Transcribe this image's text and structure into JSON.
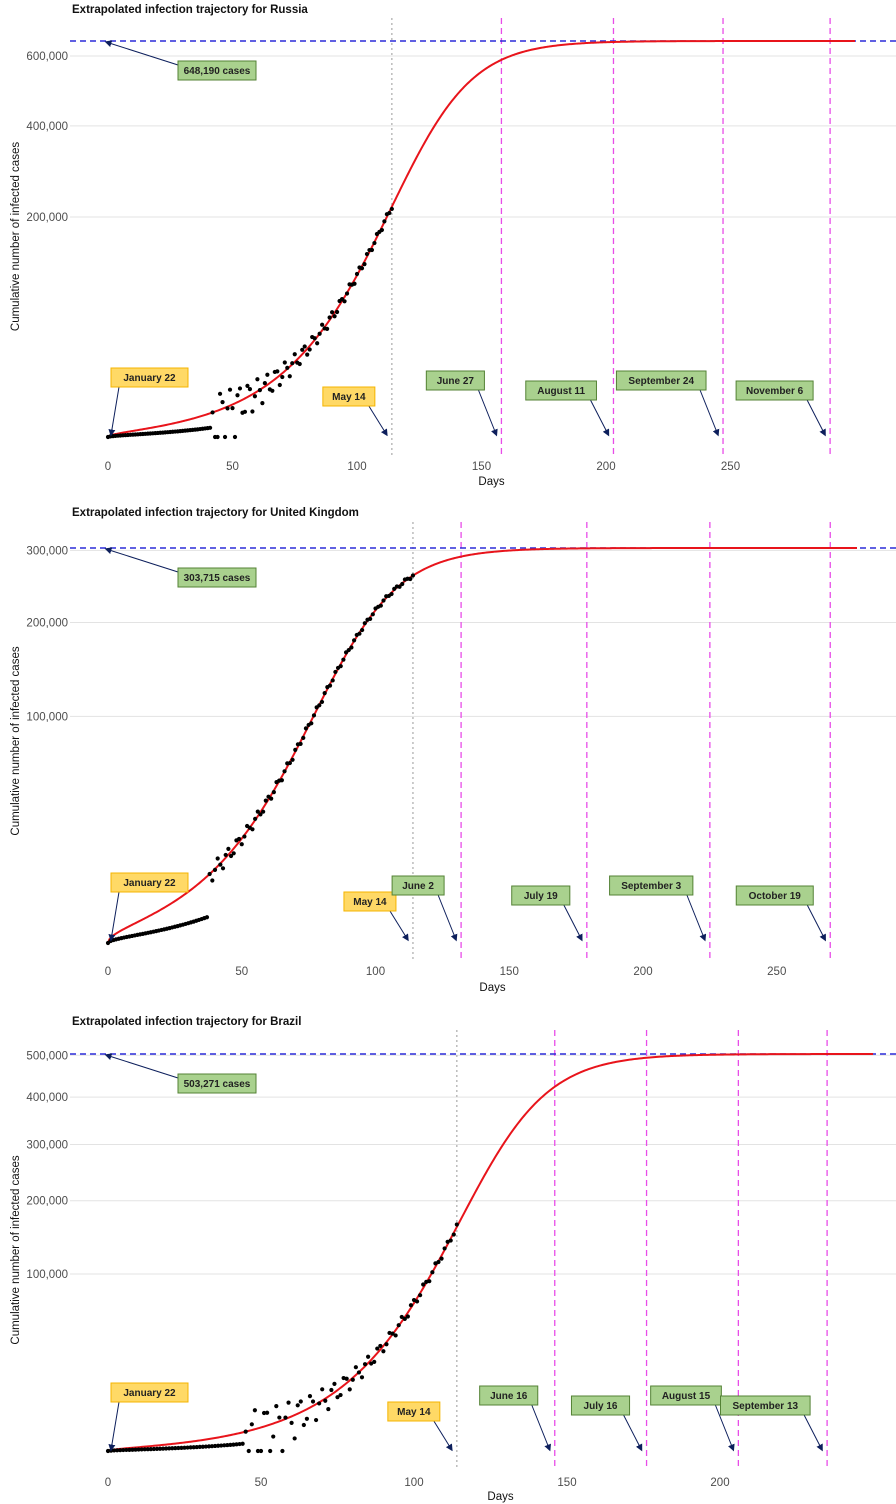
{
  "chart_data": [
    {
      "type": "line",
      "title": "Extrapolated infection trajectory for  Russia",
      "xlabel": "Days",
      "ylabel": "Cumulative number of infected cases",
      "xlim": [
        0,
        300
      ],
      "x_ticks": [
        0,
        50,
        100,
        150,
        200,
        250
      ],
      "y_ticks": [
        200000,
        400000,
        600000
      ],
      "y_tick_labels": [
        "200,000",
        "400,000",
        "600,000"
      ],
      "y_scale": "sqrt",
      "ylim": [
        0,
        648190
      ],
      "grid": true,
      "final_size": 648190,
      "final_size_label": "648,190 cases",
      "model": {
        "x0": 124,
        "k": 0.067,
        "x_end": 300
      },
      "observed_until_day": 114,
      "observed_onset_day": 42,
      "annotations": [
        {
          "label": "January 22",
          "day": 0,
          "style": "yellow",
          "line": "none"
        },
        {
          "label": "May 14",
          "day": 114,
          "style": "yellow",
          "line": "dotted"
        },
        {
          "label": "June 27",
          "day": 158,
          "style": "green",
          "line": "dashed"
        },
        {
          "label": "August 11",
          "day": 203,
          "style": "green",
          "line": "dashed"
        },
        {
          "label": "September 24",
          "day": 247,
          "style": "green",
          "line": "dashed"
        },
        {
          "label": "November 6",
          "day": 290,
          "style": "green",
          "line": "dashed"
        }
      ]
    },
    {
      "type": "line",
      "title": "Extrapolated infection trajectory for  United Kingdom",
      "xlabel": "Days",
      "ylabel": "Cumulative number of infected cases",
      "xlim": [
        0,
        280
      ],
      "x_ticks": [
        0,
        50,
        100,
        150,
        200,
        250
      ],
      "y_ticks": [
        100000,
        200000,
        300000
      ],
      "y_tick_labels": [
        "100,000",
        "200,000",
        "300,000"
      ],
      "y_scale": "sqrt",
      "ylim": [
        0,
        303715
      ],
      "grid": true,
      "final_size": 303715,
      "final_size_label": "303,715 cases",
      "model": {
        "x0": 87,
        "k": 0.069,
        "x_end": 280
      },
      "observed_until_day": 114,
      "observed_onset_day": 38,
      "annotations": [
        {
          "label": "January 22",
          "day": 0,
          "style": "yellow",
          "line": "none"
        },
        {
          "label": "May 14",
          "day": 114,
          "style": "yellow",
          "line": "dotted"
        },
        {
          "label": "June 2",
          "day": 132,
          "style": "green",
          "line": "dashed"
        },
        {
          "label": "July 19",
          "day": 179,
          "style": "green",
          "line": "dashed"
        },
        {
          "label": "September 3",
          "day": 225,
          "style": "green",
          "line": "dashed"
        },
        {
          "label": "October 19",
          "day": 270,
          "style": "green",
          "line": "dashed"
        }
      ]
    },
    {
      "type": "line",
      "title": "Extrapolated infection trajectory for  Brazil",
      "xlabel": "Days",
      "ylabel": "Cumulative number of infected cases",
      "xlim": [
        0,
        250
      ],
      "x_ticks": [
        0,
        50,
        100,
        150,
        200
      ],
      "y_ticks": [
        100000,
        200000,
        300000,
        400000,
        500000
      ],
      "y_tick_labels": [
        "100,000",
        "200,000",
        "300,000",
        "400,000",
        "500,000"
      ],
      "y_scale": "sqrt",
      "ylim": [
        0,
        503271
      ],
      "grid": true,
      "final_size": 503271,
      "final_size_label": "503,271 cases",
      "model": {
        "x0": 124,
        "k": 0.076,
        "x_end": 250
      },
      "observed_until_day": 114,
      "observed_onset_day": 45,
      "annotations": [
        {
          "label": "January 22",
          "day": 0,
          "style": "yellow",
          "line": "none"
        },
        {
          "label": "May 14",
          "day": 114,
          "style": "yellow",
          "line": "dotted"
        },
        {
          "label": "June 16",
          "day": 146,
          "style": "green",
          "line": "dashed"
        },
        {
          "label": "July 16",
          "day": 176,
          "style": "green",
          "line": "dashed"
        },
        {
          "label": "August 15",
          "day": 206,
          "style": "green",
          "line": "dashed"
        },
        {
          "label": "September 13",
          "day": 235,
          "style": "green",
          "line": "dashed"
        }
      ]
    }
  ],
  "colors": {
    "model_line": "#e8141b",
    "observed_points": "#000000",
    "final_size_line": "#2b2bd8",
    "date_line": "#e84de8",
    "current_line": "#aaaaaa",
    "green_box_fill": "#a9d18e",
    "green_box_border": "#548235",
    "yellow_box_fill": "#ffd966",
    "yellow_box_border": "#f4b400",
    "arrow": "#0d1f5c",
    "grid": "#e3e3e3"
  }
}
